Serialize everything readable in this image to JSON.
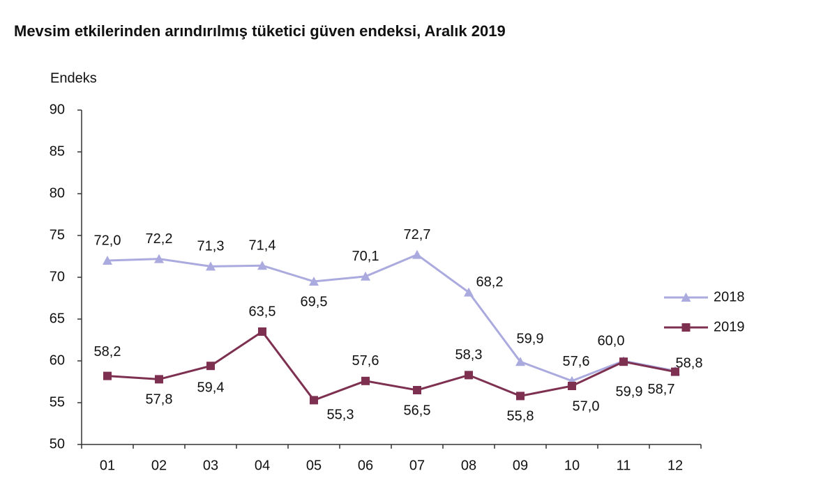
{
  "chart_data": {
    "type": "line",
    "title": "Mevsim etkilerinden arındırılmış tüketici güven endeksi, Aralık 2019",
    "y_label": "Endeks",
    "categories": [
      "01",
      "02",
      "03",
      "04",
      "05",
      "06",
      "07",
      "08",
      "09",
      "10",
      "11",
      "12"
    ],
    "series": [
      {
        "name": "2018",
        "color": "#aaaadf",
        "marker": "triangle",
        "values": [
          72.0,
          72.2,
          71.3,
          71.4,
          69.5,
          70.1,
          72.7,
          68.2,
          59.9,
          57.6,
          60.0,
          58.8
        ],
        "value_labels": [
          "72,0",
          "72,2",
          "71,3",
          "71,4",
          "69,5",
          "70,1",
          "72,7",
          "68,2",
          "59,9",
          "57,6",
          "60,0",
          "58,8"
        ]
      },
      {
        "name": "2019",
        "color": "#7d3050",
        "marker": "square",
        "values": [
          58.2,
          57.8,
          59.4,
          63.5,
          55.3,
          57.6,
          56.5,
          58.3,
          55.8,
          57.0,
          59.9,
          58.7
        ],
        "value_labels": [
          "58,2",
          "57,8",
          "59,4",
          "63,5",
          "55,3",
          "57,6",
          "56,5",
          "58,3",
          "55,8",
          "57,0",
          "59,9",
          "58,7"
        ]
      }
    ],
    "ylim": [
      50,
      90
    ],
    "yticks": [
      50,
      55,
      60,
      65,
      70,
      75,
      80,
      85,
      90
    ],
    "grid": false,
    "legend": "right"
  }
}
